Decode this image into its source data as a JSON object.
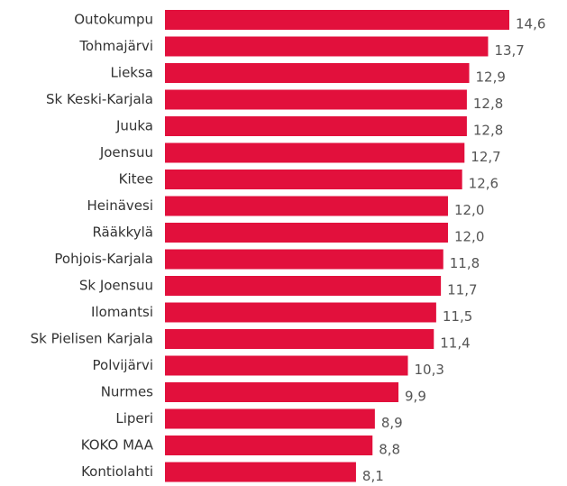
{
  "chart_data": {
    "type": "bar",
    "orientation": "horizontal",
    "categories": [
      "Outokumpu",
      "Tohmajärvi",
      "Lieksa",
      "Sk Keski-Karjala",
      "Juuka",
      "Joensuu",
      "Kitee",
      "Heinävesi",
      "Rääkkylä",
      "Pohjois-Karjala",
      "Sk Joensuu",
      "Ilomantsi",
      "Sk Pielisen Karjala",
      "Polvijärvi",
      "Nurmes",
      "Liperi",
      "KOKO MAA",
      "Kontiolahti"
    ],
    "values": [
      14.6,
      13.7,
      12.9,
      12.8,
      12.8,
      12.7,
      12.6,
      12.0,
      12.0,
      11.8,
      11.7,
      11.5,
      11.4,
      10.3,
      9.9,
      8.9,
      8.8,
      8.1
    ],
    "value_labels": [
      "14,6",
      "13,7",
      "12,9",
      "12,8",
      "12,8",
      "12,7",
      "12,6",
      "12,0",
      "12,0",
      "11,8",
      "11,7",
      "11,5",
      "11,4",
      "10,3",
      "9,9",
      "8,9",
      "8,8",
      "8,1"
    ],
    "color": "#e2103c"
  }
}
